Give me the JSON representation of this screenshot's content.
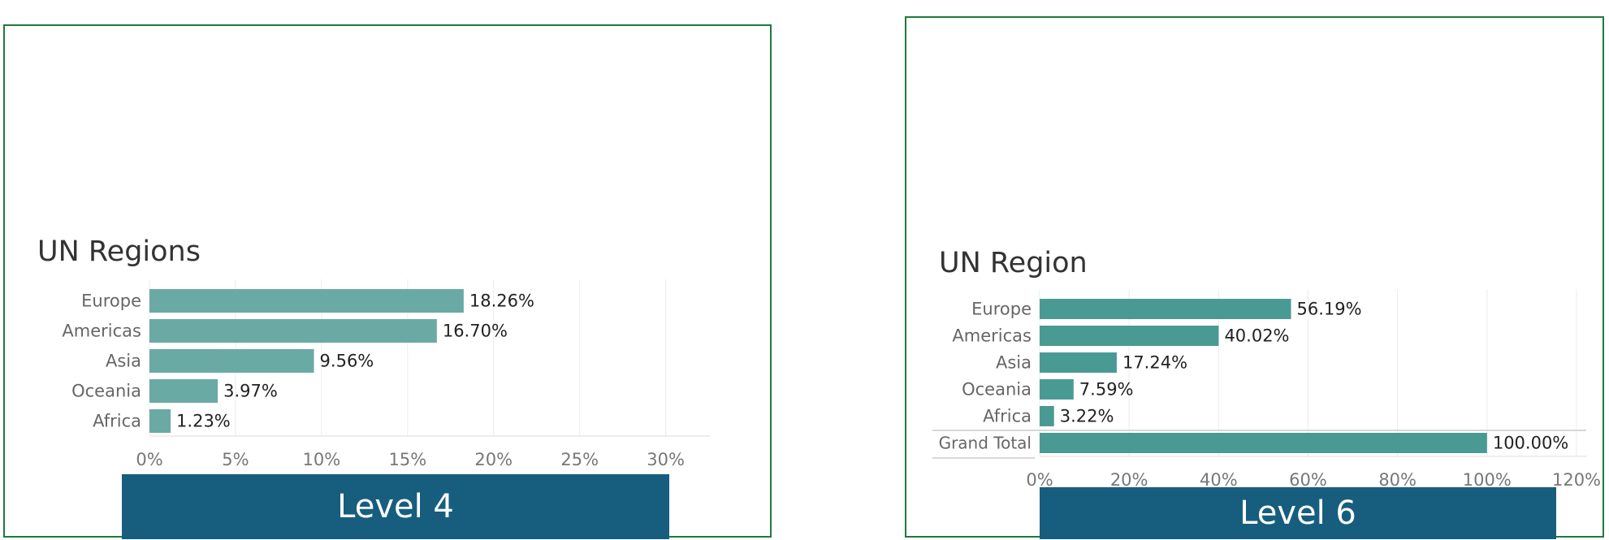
{
  "chart_data": [
    {
      "type": "bar",
      "orientation": "horizontal",
      "title": "UN Regions",
      "categories": [
        "Europe",
        "Americas",
        "Asia",
        "Oceania",
        "Africa"
      ],
      "values": [
        18.26,
        16.7,
        9.56,
        3.97,
        1.23
      ],
      "value_labels": [
        "18.26%",
        "16.70%",
        "9.56%",
        "3.97%",
        "1.23%"
      ],
      "x_ticks": [
        "0%",
        "5%",
        "10%",
        "15%",
        "20%",
        "25%",
        "30%"
      ],
      "xlim": [
        0,
        32
      ],
      "grid": true,
      "bar_color": "#6aaaa4",
      "banner": "Level 4"
    },
    {
      "type": "bar",
      "orientation": "horizontal",
      "title": "UN Region",
      "categories": [
        "Europe",
        "Americas",
        "Asia",
        "Oceania",
        "Africa"
      ],
      "values": [
        56.19,
        40.02,
        17.24,
        7.59,
        3.22
      ],
      "value_labels": [
        "56.19%",
        "40.02%",
        "17.24%",
        "7.59%",
        "3.22%"
      ],
      "grand_total": {
        "label": "Grand Total",
        "value": 100.0,
        "value_label": "100.00%"
      },
      "x_ticks": [
        "0%",
        "20%",
        "40%",
        "60%",
        "80%",
        "100%",
        "120%"
      ],
      "xlim": [
        0,
        120
      ],
      "grid": true,
      "bar_color": "#4a9a94",
      "banner": "Level 6"
    }
  ],
  "colors": {
    "panel_border": "#1e7a3c",
    "banner": "#175e7e"
  }
}
